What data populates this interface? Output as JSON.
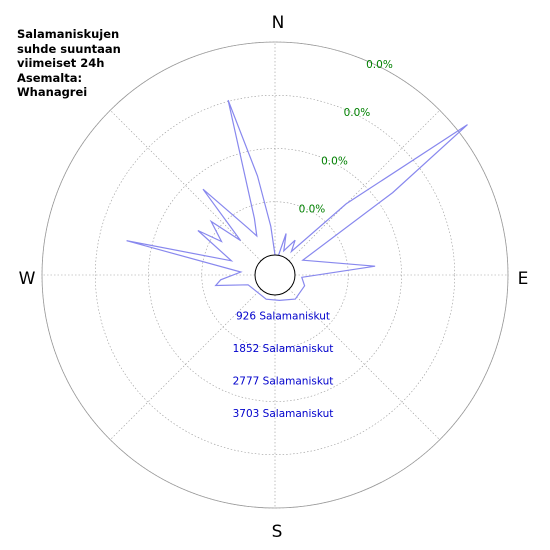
{
  "title_lines": [
    "Salamaniskujen",
    "suhde suuntaan",
    "viimeiset 24h",
    "Asemalta:",
    "Whanagrei"
  ],
  "compass": {
    "n": "N",
    "e": "E",
    "s": "S",
    "w": "W"
  },
  "colors": {
    "series": "#8888ee",
    "percent_labels": "#008000",
    "count_labels": "#0000cc",
    "grid": "#999999"
  },
  "chart_data": {
    "type": "polar-line",
    "radial_unit": "Salamaniskut",
    "rings": [
      926,
      1852,
      2777,
      3703
    ],
    "ring_count_labels": [
      "926 Salamaniskut",
      "1852 Salamaniskut",
      "2777 Salamaniskut",
      "3703 Salamaniskut"
    ],
    "ring_percent_labels": [
      "0.0%",
      "0.0%",
      "0.0%",
      "0.0%"
    ],
    "series": [
      {
        "points": [
          {
            "bearing": 0,
            "value": 0
          },
          {
            "bearing": 10,
            "value": 0
          },
          {
            "bearing": 15,
            "value": 400
          },
          {
            "bearing": 20,
            "value": 100
          },
          {
            "bearing": 30,
            "value": 350
          },
          {
            "bearing": 35,
            "value": 150
          },
          {
            "bearing": 45,
            "value": 1400
          },
          {
            "bearing": 52,
            "value": 3900
          },
          {
            "bearing": 55,
            "value": 2150
          },
          {
            "bearing": 62,
            "value": 200
          },
          {
            "bearing": 85,
            "value": 1400
          },
          {
            "bearing": 95,
            "value": 120
          },
          {
            "bearing": 110,
            "value": 200
          },
          {
            "bearing": 140,
            "value": 200
          },
          {
            "bearing": 170,
            "value": 100
          },
          {
            "bearing": 200,
            "value": 100
          },
          {
            "bearing": 250,
            "value": 150
          },
          {
            "bearing": 260,
            "value": 700
          },
          {
            "bearing": 265,
            "value": 600
          },
          {
            "bearing": 275,
            "value": 250
          },
          {
            "bearing": 283,
            "value": 2300
          },
          {
            "bearing": 288,
            "value": 450
          },
          {
            "bearing": 300,
            "value": 1200
          },
          {
            "bearing": 302,
            "value": 750
          },
          {
            "bearing": 310,
            "value": 1100
          },
          {
            "bearing": 315,
            "value": 500
          },
          {
            "bearing": 320,
            "value": 1600
          },
          {
            "bearing": 330,
            "value": 600
          },
          {
            "bearing": 335,
            "value": 400
          },
          {
            "bearing": 340,
            "value": 700
          },
          {
            "bearing": 345,
            "value": 2800
          },
          {
            "bearing": 350,
            "value": 1400
          },
          {
            "bearing": 355,
            "value": 500
          },
          {
            "bearing": 360,
            "value": 0
          }
        ]
      }
    ]
  }
}
